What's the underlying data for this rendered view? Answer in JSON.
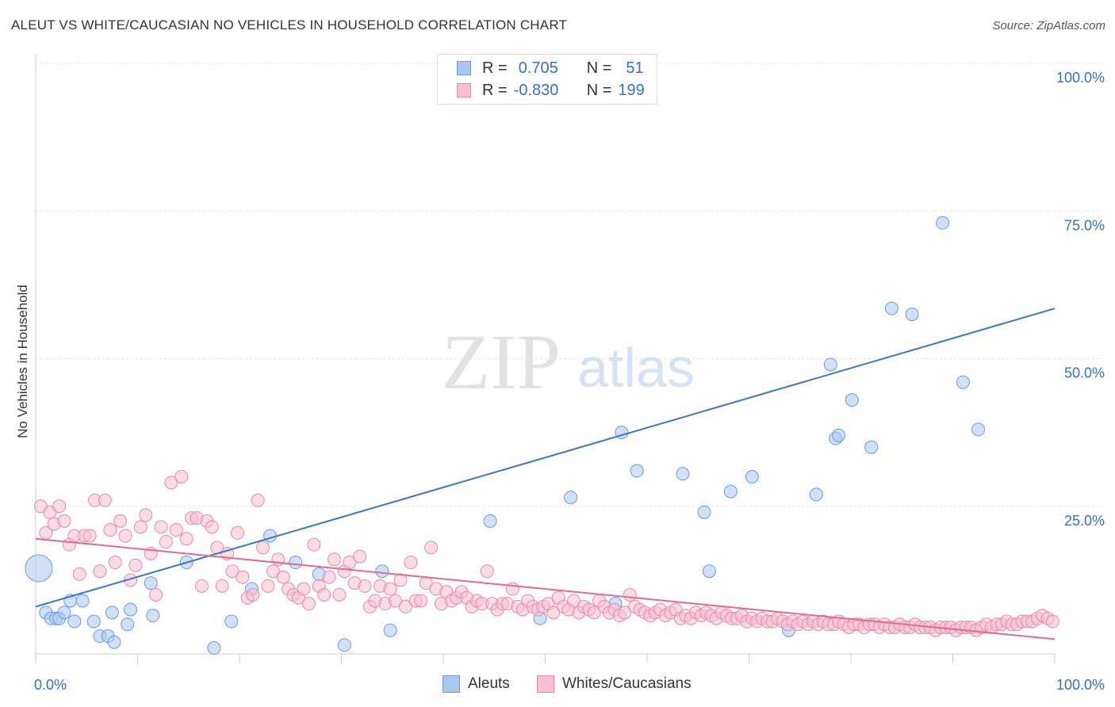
{
  "title": "ALEUT VS WHITE/CAUCASIAN NO VEHICLES IN HOUSEHOLD CORRELATION CHART",
  "source": "Source: ZipAtlas.com",
  "watermark": {
    "zip": "ZIP",
    "atlas": "atlas"
  },
  "legend": {
    "rows": [
      {
        "r_label": "R =",
        "r_value": "0.705",
        "n_label": "N =",
        "n_value": "51",
        "color": "#a9c8f0",
        "border": "#6b9ae0"
      },
      {
        "r_label": "R =",
        "r_value": "-0.830",
        "n_label": "N =",
        "n_value": "199",
        "color": "#f8bfd0",
        "border": "#e88aa8"
      }
    ]
  },
  "bottom_legend": [
    {
      "label": "Aleuts",
      "color": "#a9c8f0",
      "border": "#6b9ae0"
    },
    {
      "label": "Whites/Caucasians",
      "color": "#f8bfd0",
      "border": "#e88aa8"
    }
  ],
  "chart_data": {
    "type": "scatter",
    "title": "ALEUT VS WHITE/CAUCASIAN NO VEHICLES IN HOUSEHOLD CORRELATION CHART",
    "xlabel": "",
    "ylabel": "No Vehicles in Household",
    "xlim": [
      0,
      100
    ],
    "ylim": [
      0,
      100
    ],
    "x_ticks": [
      "0.0%",
      "100.0%"
    ],
    "y_ticks": [
      "25.0%",
      "50.0%",
      "75.0%",
      "100.0%"
    ],
    "grid": true,
    "legend_placement": "top-center",
    "series": [
      {
        "name": "Aleuts",
        "color": "#a9c8f0",
        "stroke": "#6b9ae0",
        "trend": {
          "x": [
            0,
            100
          ],
          "y": [
            8.0,
            58.5
          ],
          "color": "#3a75c9"
        },
        "points": [
          [
            0.3,
            14.5
          ],
          [
            1.0,
            7.0
          ],
          [
            1.5,
            6.0
          ],
          [
            2.0,
            6.0
          ],
          [
            2.3,
            6.0
          ],
          [
            2.8,
            7.0
          ],
          [
            3.4,
            9.0
          ],
          [
            3.8,
            5.5
          ],
          [
            4.6,
            9.0
          ],
          [
            5.7,
            5.5
          ],
          [
            6.3,
            3.0
          ],
          [
            7.1,
            3.0
          ],
          [
            7.5,
            7.0
          ],
          [
            7.7,
            2.0
          ],
          [
            9.0,
            5.0
          ],
          [
            9.3,
            7.5
          ],
          [
            11.3,
            12.0
          ],
          [
            11.5,
            6.5
          ],
          [
            14.8,
            15.5
          ],
          [
            17.5,
            1.0
          ],
          [
            19.2,
            5.5
          ],
          [
            21.2,
            11.0
          ],
          [
            23.0,
            20.0
          ],
          [
            25.5,
            15.5
          ],
          [
            27.8,
            13.5
          ],
          [
            30.3,
            1.5
          ],
          [
            34.0,
            14.0
          ],
          [
            34.8,
            4.0
          ],
          [
            44.6,
            22.5
          ],
          [
            49.5,
            6.0
          ],
          [
            56.9,
            8.5
          ],
          [
            63.5,
            30.5
          ],
          [
            65.6,
            24.0
          ],
          [
            66.1,
            14.0
          ],
          [
            68.2,
            27.5
          ],
          [
            70.3,
            30.0
          ],
          [
            73.9,
            4.0
          ],
          [
            76.6,
            27.0
          ],
          [
            78.5,
            36.5
          ],
          [
            78.8,
            37.0
          ],
          [
            78.0,
            49.0
          ],
          [
            80.1,
            43.0
          ],
          [
            82.0,
            35.0
          ],
          [
            84.0,
            58.5
          ],
          [
            86.0,
            57.5
          ],
          [
            89.0,
            73.0
          ],
          [
            91.0,
            46.0
          ],
          [
            92.5,
            38.0
          ],
          [
            57.5,
            37.5
          ],
          [
            52.5,
            26.5
          ],
          [
            59.0,
            31.0
          ]
        ]
      },
      {
        "name": "Whites/Caucasians",
        "color": "#f8bfd0",
        "stroke": "#e88aa8",
        "trend": {
          "x": [
            0,
            100
          ],
          "y": [
            19.5,
            2.5
          ],
          "color": "#e06a92"
        },
        "points": [
          [
            0.5,
            25.0
          ],
          [
            1.0,
            20.5
          ],
          [
            1.4,
            24.0
          ],
          [
            1.8,
            22.0
          ],
          [
            2.3,
            25.0
          ],
          [
            2.8,
            22.5
          ],
          [
            3.3,
            18.5
          ],
          [
            3.8,
            20.0
          ],
          [
            4.3,
            13.5
          ],
          [
            4.8,
            20.0
          ],
          [
            5.3,
            20.0
          ],
          [
            5.8,
            26.0
          ],
          [
            6.3,
            14.0
          ],
          [
            6.8,
            26.0
          ],
          [
            7.3,
            21.0
          ],
          [
            7.8,
            15.5
          ],
          [
            8.3,
            22.5
          ],
          [
            8.8,
            20.0
          ],
          [
            9.3,
            12.5
          ],
          [
            9.8,
            15.0
          ],
          [
            10.3,
            21.5
          ],
          [
            10.8,
            23.5
          ],
          [
            11.3,
            17.0
          ],
          [
            11.8,
            10.0
          ],
          [
            12.3,
            21.5
          ],
          [
            12.8,
            19.0
          ],
          [
            13.3,
            29.0
          ],
          [
            13.8,
            21.0
          ],
          [
            14.3,
            30.0
          ],
          [
            14.8,
            19.5
          ],
          [
            15.3,
            23.0
          ],
          [
            15.8,
            23.0
          ],
          [
            16.3,
            11.5
          ],
          [
            16.8,
            22.5
          ],
          [
            17.3,
            21.5
          ],
          [
            17.8,
            18.0
          ],
          [
            18.3,
            11.5
          ],
          [
            18.8,
            17.0
          ],
          [
            19.3,
            14.0
          ],
          [
            19.8,
            20.5
          ],
          [
            20.3,
            13.0
          ],
          [
            20.8,
            9.5
          ],
          [
            21.3,
            10.0
          ],
          [
            21.8,
            26.0
          ],
          [
            22.3,
            18.0
          ],
          [
            22.8,
            11.5
          ],
          [
            23.3,
            14.0
          ],
          [
            23.8,
            16.0
          ],
          [
            24.3,
            13.0
          ],
          [
            24.8,
            11.0
          ],
          [
            25.3,
            10.0
          ],
          [
            25.8,
            9.5
          ],
          [
            26.3,
            11.0
          ],
          [
            26.8,
            8.5
          ],
          [
            27.3,
            18.5
          ],
          [
            27.8,
            11.5
          ],
          [
            28.3,
            10.0
          ],
          [
            28.8,
            13.0
          ],
          [
            29.3,
            16.0
          ],
          [
            29.8,
            10.0
          ],
          [
            30.3,
            14.0
          ],
          [
            30.8,
            15.5
          ],
          [
            31.3,
            12.0
          ],
          [
            31.8,
            16.5
          ],
          [
            32.3,
            11.5
          ],
          [
            32.8,
            8.0
          ],
          [
            33.3,
            9.0
          ],
          [
            33.8,
            11.5
          ],
          [
            34.3,
            8.5
          ],
          [
            34.8,
            11.0
          ],
          [
            35.3,
            9.0
          ],
          [
            35.8,
            12.5
          ],
          [
            36.3,
            8.0
          ],
          [
            36.8,
            15.5
          ],
          [
            37.3,
            9.0
          ],
          [
            37.8,
            9.0
          ],
          [
            38.3,
            12.0
          ],
          [
            38.8,
            18.0
          ],
          [
            39.3,
            11.0
          ],
          [
            39.8,
            8.5
          ],
          [
            40.3,
            10.5
          ],
          [
            40.8,
            9.0
          ],
          [
            41.3,
            9.5
          ],
          [
            41.8,
            10.5
          ],
          [
            42.3,
            9.5
          ],
          [
            42.8,
            8.0
          ],
          [
            43.3,
            9.0
          ],
          [
            43.8,
            8.5
          ],
          [
            44.3,
            14.0
          ],
          [
            44.8,
            8.5
          ],
          [
            45.3,
            7.5
          ],
          [
            45.8,
            8.5
          ],
          [
            46.3,
            8.5
          ],
          [
            46.8,
            11.0
          ],
          [
            47.3,
            8.0
          ],
          [
            47.8,
            7.5
          ],
          [
            48.3,
            9.0
          ],
          [
            48.8,
            8.0
          ],
          [
            49.3,
            7.5
          ],
          [
            49.8,
            8.0
          ],
          [
            50.3,
            8.5
          ],
          [
            50.8,
            7.0
          ],
          [
            51.3,
            9.5
          ],
          [
            51.8,
            8.0
          ],
          [
            52.3,
            7.5
          ],
          [
            52.8,
            9.0
          ],
          [
            53.3,
            7.0
          ],
          [
            53.8,
            8.0
          ],
          [
            54.3,
            7.5
          ],
          [
            54.8,
            7.0
          ],
          [
            55.3,
            9.0
          ],
          [
            55.8,
            8.0
          ],
          [
            56.3,
            7.0
          ],
          [
            56.8,
            7.5
          ],
          [
            57.3,
            6.5
          ],
          [
            57.8,
            7.0
          ],
          [
            58.3,
            10.0
          ],
          [
            58.8,
            8.0
          ],
          [
            59.3,
            7.5
          ],
          [
            59.8,
            7.0
          ],
          [
            60.3,
            6.5
          ],
          [
            60.8,
            7.0
          ],
          [
            61.3,
            7.5
          ],
          [
            61.8,
            6.5
          ],
          [
            62.3,
            7.0
          ],
          [
            62.8,
            7.5
          ],
          [
            63.3,
            6.0
          ],
          [
            63.8,
            6.5
          ],
          [
            64.3,
            6.0
          ],
          [
            64.8,
            7.0
          ],
          [
            65.3,
            6.5
          ],
          [
            65.8,
            7.0
          ],
          [
            66.3,
            6.5
          ],
          [
            66.8,
            6.0
          ],
          [
            67.3,
            7.0
          ],
          [
            67.8,
            6.5
          ],
          [
            68.3,
            6.0
          ],
          [
            68.8,
            6.0
          ],
          [
            69.3,
            6.5
          ],
          [
            69.8,
            5.5
          ],
          [
            70.3,
            6.0
          ],
          [
            70.8,
            5.5
          ],
          [
            71.3,
            6.0
          ],
          [
            71.8,
            5.5
          ],
          [
            72.3,
            5.5
          ],
          [
            72.8,
            6.0
          ],
          [
            73.3,
            5.5
          ],
          [
            73.8,
            5.0
          ],
          [
            74.3,
            5.5
          ],
          [
            74.8,
            5.0
          ],
          [
            75.3,
            5.5
          ],
          [
            75.8,
            5.0
          ],
          [
            76.3,
            5.5
          ],
          [
            76.8,
            5.0
          ],
          [
            77.3,
            5.5
          ],
          [
            77.8,
            5.0
          ],
          [
            78.3,
            5.0
          ],
          [
            78.8,
            5.5
          ],
          [
            79.3,
            5.0
          ],
          [
            79.8,
            4.5
          ],
          [
            80.3,
            5.0
          ],
          [
            80.8,
            5.0
          ],
          [
            81.3,
            4.5
          ],
          [
            81.8,
            5.0
          ],
          [
            82.3,
            5.0
          ],
          [
            82.8,
            4.5
          ],
          [
            83.3,
            5.0
          ],
          [
            83.8,
            4.5
          ],
          [
            84.3,
            4.5
          ],
          [
            84.8,
            5.0
          ],
          [
            85.3,
            4.5
          ],
          [
            85.8,
            4.5
          ],
          [
            86.3,
            5.0
          ],
          [
            86.8,
            4.5
          ],
          [
            87.3,
            4.5
          ],
          [
            87.8,
            4.5
          ],
          [
            88.3,
            4.0
          ],
          [
            88.8,
            4.5
          ],
          [
            89.3,
            4.5
          ],
          [
            89.8,
            4.5
          ],
          [
            90.3,
            4.0
          ],
          [
            90.8,
            4.5
          ],
          [
            91.3,
            4.5
          ],
          [
            91.8,
            4.5
          ],
          [
            92.3,
            4.0
          ],
          [
            92.8,
            4.5
          ],
          [
            93.3,
            5.0
          ],
          [
            93.8,
            4.5
          ],
          [
            94.3,
            5.0
          ],
          [
            94.8,
            5.0
          ],
          [
            95.3,
            5.5
          ],
          [
            95.8,
            5.0
          ],
          [
            96.3,
            5.0
          ],
          [
            96.8,
            5.5
          ],
          [
            97.3,
            5.5
          ],
          [
            97.8,
            5.5
          ],
          [
            98.3,
            6.0
          ],
          [
            98.8,
            6.5
          ],
          [
            99.3,
            6.0
          ],
          [
            99.8,
            5.5
          ]
        ]
      }
    ]
  }
}
